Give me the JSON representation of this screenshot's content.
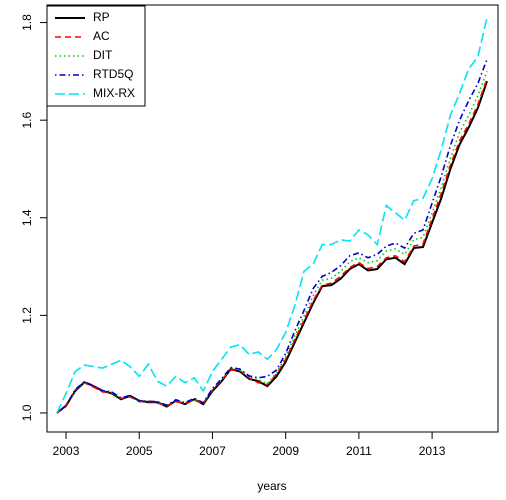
{
  "chart_data": {
    "type": "line",
    "xlabel": "years",
    "x": [
      2002.75,
      2003.0,
      2003.25,
      2003.5,
      2003.75,
      2004.0,
      2004.25,
      2004.5,
      2004.75,
      2005.0,
      2005.25,
      2005.5,
      2005.75,
      2006.0,
      2006.25,
      2006.5,
      2006.75,
      2007.0,
      2007.25,
      2007.5,
      2007.75,
      2008.0,
      2008.25,
      2008.5,
      2008.75,
      2009.0,
      2009.25,
      2009.5,
      2009.75,
      2010.0,
      2010.25,
      2010.5,
      2010.75,
      2011.0,
      2011.25,
      2011.5,
      2011.75,
      2012.0,
      2012.25,
      2012.5,
      2012.75,
      2013.0,
      2013.25,
      2013.5,
      2013.75,
      2014.0,
      2014.25,
      2014.5
    ],
    "series": [
      {
        "name": "RP",
        "color": "#000000",
        "dash": "solid",
        "values": [
          1.0,
          1.015,
          1.045,
          1.063,
          1.055,
          1.045,
          1.04,
          1.028,
          1.035,
          1.025,
          1.022,
          1.022,
          1.013,
          1.025,
          1.018,
          1.028,
          1.018,
          1.045,
          1.065,
          1.09,
          1.085,
          1.07,
          1.065,
          1.055,
          1.075,
          1.105,
          1.145,
          1.185,
          1.225,
          1.26,
          1.262,
          1.275,
          1.295,
          1.305,
          1.292,
          1.295,
          1.315,
          1.318,
          1.305,
          1.338,
          1.34,
          1.39,
          1.44,
          1.5,
          1.55,
          1.585,
          1.625,
          1.68
        ]
      },
      {
        "name": "AC",
        "color": "#ff0000",
        "dash": "dashed",
        "values": [
          1.0,
          1.013,
          1.047,
          1.062,
          1.053,
          1.043,
          1.042,
          1.03,
          1.033,
          1.023,
          1.024,
          1.02,
          1.015,
          1.023,
          1.02,
          1.026,
          1.02,
          1.047,
          1.068,
          1.088,
          1.087,
          1.072,
          1.062,
          1.058,
          1.08,
          1.11,
          1.15,
          1.19,
          1.23,
          1.262,
          1.266,
          1.28,
          1.298,
          1.308,
          1.296,
          1.3,
          1.318,
          1.322,
          1.31,
          1.342,
          1.346,
          1.398,
          1.45,
          1.508,
          1.558,
          1.592,
          1.632,
          1.685
        ]
      },
      {
        "name": "DIT",
        "color": "#00cd00",
        "dash": "dotted",
        "values": [
          1.0,
          1.014,
          1.046,
          1.064,
          1.055,
          1.045,
          1.041,
          1.03,
          1.035,
          1.024,
          1.023,
          1.022,
          1.015,
          1.026,
          1.02,
          1.028,
          1.02,
          1.048,
          1.068,
          1.092,
          1.088,
          1.074,
          1.068,
          1.06,
          1.082,
          1.115,
          1.158,
          1.198,
          1.24,
          1.272,
          1.276,
          1.29,
          1.31,
          1.318,
          1.308,
          1.312,
          1.332,
          1.336,
          1.325,
          1.355,
          1.36,
          1.41,
          1.462,
          1.522,
          1.575,
          1.61,
          1.65,
          1.7
        ]
      },
      {
        "name": "RTD5Q",
        "color": "#0000cd",
        "dash": "dotdash",
        "values": [
          1.0,
          1.015,
          1.048,
          1.064,
          1.056,
          1.046,
          1.043,
          1.031,
          1.036,
          1.025,
          1.024,
          1.023,
          1.016,
          1.027,
          1.021,
          1.03,
          1.021,
          1.05,
          1.07,
          1.093,
          1.09,
          1.076,
          1.072,
          1.075,
          1.088,
          1.122,
          1.168,
          1.21,
          1.255,
          1.28,
          1.288,
          1.302,
          1.322,
          1.328,
          1.318,
          1.325,
          1.342,
          1.348,
          1.338,
          1.368,
          1.375,
          1.43,
          1.485,
          1.548,
          1.6,
          1.64,
          1.675,
          1.725
        ]
      },
      {
        "name": "MIX-RX",
        "color": "#00e5ee",
        "dash": "longdash",
        "values": [
          1.0,
          1.04,
          1.085,
          1.098,
          1.095,
          1.092,
          1.1,
          1.108,
          1.095,
          1.075,
          1.1,
          1.065,
          1.055,
          1.075,
          1.062,
          1.072,
          1.045,
          1.085,
          1.11,
          1.135,
          1.14,
          1.12,
          1.125,
          1.11,
          1.13,
          1.165,
          1.22,
          1.29,
          1.305,
          1.345,
          1.345,
          1.355,
          1.352,
          1.375,
          1.365,
          1.345,
          1.425,
          1.41,
          1.395,
          1.435,
          1.44,
          1.48,
          1.54,
          1.61,
          1.655,
          1.705,
          1.73,
          1.81
        ]
      }
    ],
    "xlim": [
      2002.48,
      2014.8
    ],
    "xticks": [
      2003,
      2005,
      2007,
      2009,
      2011,
      2013
    ],
    "ylim": [
      0.961,
      1.836
    ],
    "yticks": [
      {
        "value": 1,
        "label": "1.0"
      },
      1.2,
      1.4,
      1.6,
      1.8
    ],
    "legend": "top-left"
  }
}
